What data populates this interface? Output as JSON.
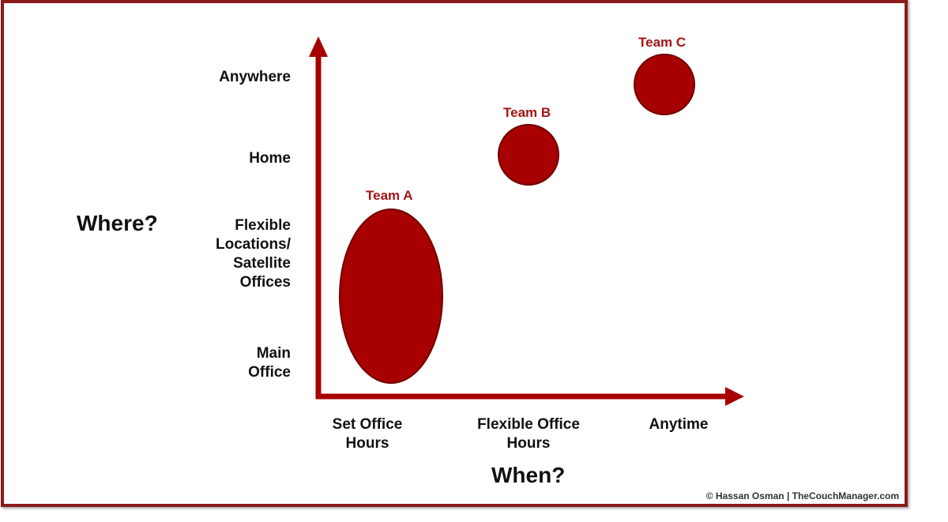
{
  "y_axis": {
    "title": "Where?",
    "categories": [
      "Main Office",
      "Flexible Locations/ Satellite Offices",
      "Home",
      "Anywhere"
    ]
  },
  "x_axis": {
    "title": "When?",
    "categories": [
      "Set Office Hours",
      "Flexible Office Hours",
      "Anytime"
    ]
  },
  "teams": [
    {
      "label": "Team A",
      "when": "Set Office Hours",
      "where": [
        "Main Office",
        "Flexible Locations/ Satellite Offices"
      ]
    },
    {
      "label": "Team B",
      "when": "Flexible Office Hours",
      "where": [
        "Home"
      ]
    },
    {
      "label": "Team C",
      "when": "Anytime",
      "where": [
        "Anywhere"
      ]
    }
  ],
  "credit": "© Hassan Osman | TheCouchManager.com",
  "colors": {
    "accent": "#a80000",
    "frame": "#8b1a1a",
    "team_label": "#a31515"
  }
}
